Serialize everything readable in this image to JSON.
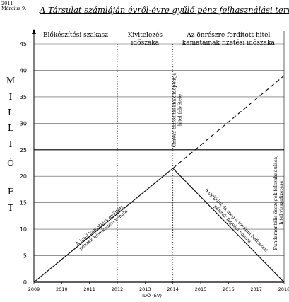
{
  "header": {
    "year": "2011",
    "date": "Március 9.",
    "title": "A Társulat számláján évről-évre gyűlő pénz felhasználási terve"
  },
  "chart_data": {
    "type": "line",
    "xlabel": "IDŐ (ÉV)",
    "ylabel_letters": [
      "M",
      "I",
      "L",
      "L",
      "I",
      "Ó",
      "F",
      "T"
    ],
    "x_ticks": [
      "2009",
      "2010",
      "2011",
      "2012",
      "2013",
      "2014",
      "2015",
      "2016",
      "2017",
      "2018"
    ],
    "xlim": [
      2009,
      2018
    ],
    "ylim": [
      0,
      45
    ],
    "y_ticks": [
      0,
      5,
      10,
      15,
      20,
      25,
      30,
      35,
      40,
      45
    ],
    "grid": "horizontal",
    "reference_line_y": 25,
    "phases": [
      {
        "label": "Előkészítési szakasz",
        "x_start": 2009,
        "x_end": 2012
      },
      {
        "label_lines": [
          "Kivitelezés",
          "időszaka"
        ],
        "x_start": 2012,
        "x_end": 2014
      },
      {
        "label_lines": [
          "Az önrészre fordított hitel",
          "kamatainak fizetési időszaka"
        ],
        "x_start": 2014,
        "x_end": 2018
      }
    ],
    "series": [
      {
        "style": "solid",
        "x": [
          2009,
          2014
        ],
        "y": [
          0,
          21.5
        ]
      },
      {
        "style": "solid",
        "x": [
          2014,
          2018
        ],
        "y": [
          21.5,
          0
        ]
      },
      {
        "style": "dashed",
        "x": [
          2014,
          2018
        ],
        "y": [
          21.5,
          39
        ]
      }
    ],
    "annotations": {
      "rising_line": [
        "A hitel kamataira gyűjtött",
        "pénzek növekedési vonala"
      ],
      "falling_line": [
        "A gyűjtött és még a további befizetett",
        "pénzek fogyási vonala"
      ],
      "mid_vertical": [
        "Önrész biztosításának időpontja",
        "hitel felvétele"
      ],
      "right_vertical": [
        "Fundamentális összegek felszabadulása,",
        "hitel visszafizetése"
      ]
    }
  }
}
